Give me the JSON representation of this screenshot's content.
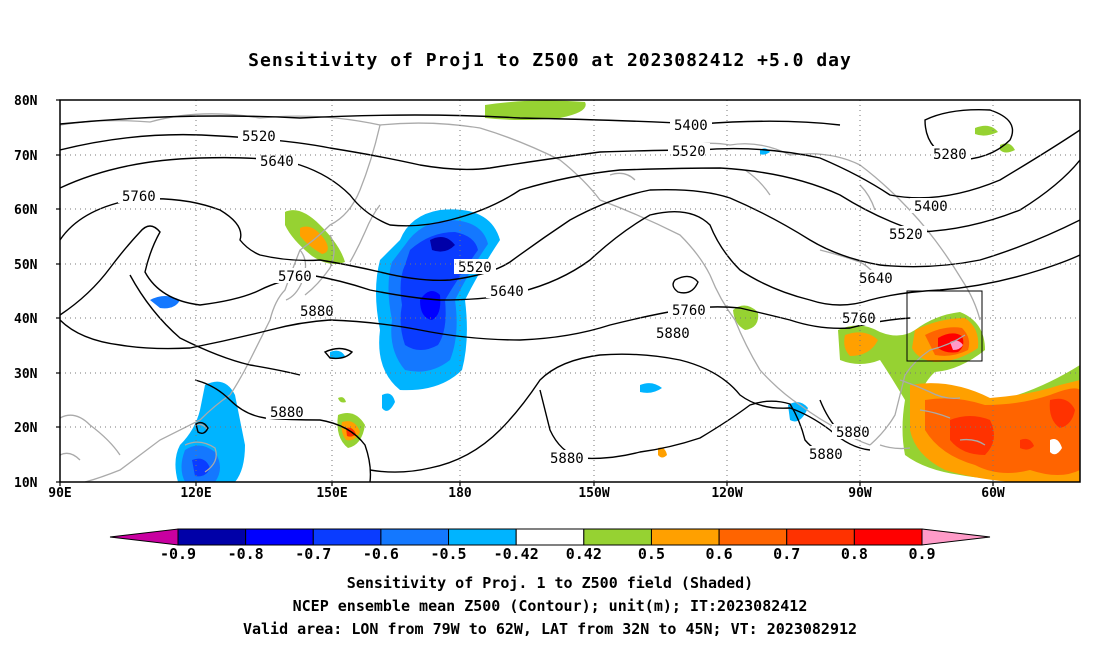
{
  "title": "Sensitivity of Proj1 to Z500 at 2023082412 +5.0 day",
  "map": {
    "lat_labels": [
      "80N",
      "70N",
      "60N",
      "50N",
      "40N",
      "30N",
      "20N",
      "10N"
    ],
    "lon_labels": [
      "90E",
      "120E",
      "150E",
      "180",
      "150W",
      "120W",
      "90W",
      "60W"
    ],
    "contour_labels": [
      "5520",
      "5640",
      "5760",
      "5400",
      "5520",
      "5280",
      "5400",
      "5520",
      "5520",
      "5640",
      "5640",
      "5760",
      "5760",
      "5760",
      "5880",
      "5880",
      "5880",
      "5880",
      "5880",
      "5880"
    ],
    "valid_area": {
      "lon": [
        "79W",
        "62W"
      ],
      "lat": [
        "32N",
        "45N"
      ]
    }
  },
  "colorbar": {
    "labels": [
      "-0.9",
      "-0.8",
      "-0.7",
      "-0.6",
      "-0.5",
      "-0.42",
      "0.42",
      "0.5",
      "0.6",
      "0.7",
      "0.8",
      "0.9"
    ],
    "colors": [
      "#c800a0",
      "#0000a8",
      "#0000ff",
      "#0a3cff",
      "#1478ff",
      "#00b4ff",
      "#ffffff",
      "#96d232",
      "#ffa000",
      "#ff6400",
      "#ff3200",
      "#ff0000",
      "#ff9bc8"
    ]
  },
  "caption": {
    "line1": "Sensitivity of Proj. 1 to Z500 field (Shaded)",
    "line2": "NCEP ensemble mean Z500 (Contour); unit(m); IT:2023082412",
    "line3": "Valid area: LON from 79W to 62W, LAT from 32N to 45N; VT: 2023082912"
  }
}
